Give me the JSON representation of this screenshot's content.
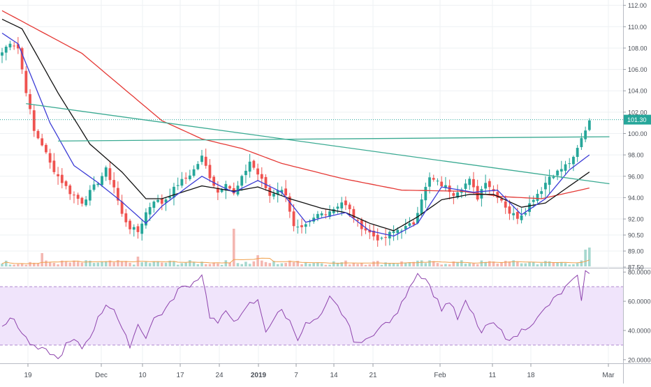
{
  "chart_data": [
    {
      "type": "candlestick",
      "panel": "price",
      "y_ticks": [
        "112.00",
        "110.00",
        "108.00",
        "106.00",
        "104.00",
        "102.00",
        "100.00",
        "98.00",
        "96.00",
        "94.00",
        "92.00",
        "90.50",
        "89.00",
        "87.50"
      ],
      "ylim": [
        87.5,
        112.5
      ],
      "last_price_label": "101.30",
      "last_price": 101.3,
      "x_ticks": [
        "19",
        "Dec",
        "10",
        "17",
        "24",
        "2019",
        "7",
        "14",
        "21",
        "Feb",
        "11",
        "18",
        "Mar"
      ],
      "close_keypoints": [
        [
          0,
          107.6
        ],
        [
          2,
          108.6
        ],
        [
          4,
          108.0
        ],
        [
          6,
          104.0
        ],
        [
          8,
          100.2
        ],
        [
          10,
          99.0
        ],
        [
          12,
          97.2
        ],
        [
          14,
          96.0
        ],
        [
          17,
          94.5
        ],
        [
          20,
          93.6
        ],
        [
          22,
          94.5
        ],
        [
          24,
          95.5
        ],
        [
          26,
          96.6
        ],
        [
          28,
          95.0
        ],
        [
          30,
          92.4
        ],
        [
          32,
          91.2
        ],
        [
          34,
          90.8
        ],
        [
          36,
          92.6
        ],
        [
          38,
          93.8
        ],
        [
          40,
          93.5
        ],
        [
          42,
          94.3
        ],
        [
          44,
          95.3
        ],
        [
          46,
          95.8
        ],
        [
          48,
          96.6
        ],
        [
          50,
          97.8
        ],
        [
          52,
          96.0
        ],
        [
          54,
          94.5
        ],
        [
          56,
          95.5
        ],
        [
          58,
          94.3
        ],
        [
          60,
          95.8
        ],
        [
          62,
          97.4
        ],
        [
          63,
          96.8
        ],
        [
          65,
          95.6
        ],
        [
          67,
          94.2
        ],
        [
          69,
          94.8
        ],
        [
          71,
          94.4
        ],
        [
          73,
          91.2
        ],
        [
          75,
          91.0
        ],
        [
          77,
          91.6
        ],
        [
          79,
          92.4
        ],
        [
          81,
          92.6
        ],
        [
          83,
          93.0
        ],
        [
          85,
          93.6
        ],
        [
          87,
          92.8
        ],
        [
          89,
          91.6
        ],
        [
          91,
          91.0
        ],
        [
          93,
          90.4
        ],
        [
          95,
          90.0
        ],
        [
          97,
          90.6
        ],
        [
          99,
          91.0
        ],
        [
          101,
          91.2
        ],
        [
          103,
          91.6
        ],
        [
          105,
          94.0
        ],
        [
          107,
          95.8
        ],
        [
          109,
          95.4
        ],
        [
          111,
          95.0
        ],
        [
          113,
          94.4
        ],
        [
          115,
          95.0
        ],
        [
          117,
          95.6
        ],
        [
          119,
          94.0
        ],
        [
          121,
          95.6
        ],
        [
          123,
          94.6
        ],
        [
          125,
          93.8
        ],
        [
          127,
          92.6
        ],
        [
          129,
          92.2
        ],
        [
          131,
          92.8
        ],
        [
          133,
          94.0
        ],
        [
          135,
          94.8
        ],
        [
          137,
          96.0
        ],
        [
          139,
          96.4
        ],
        [
          141,
          97.0
        ],
        [
          143,
          97.6
        ],
        [
          145,
          99.5
        ],
        [
          147,
          101.3
        ]
      ],
      "volume_spikes": [
        [
          0,
          4
        ],
        [
          10,
          19
        ],
        [
          34,
          14
        ],
        [
          58,
          54
        ],
        [
          64,
          16
        ],
        [
          74,
          8
        ],
        [
          102,
          6
        ],
        [
          126,
          8
        ],
        [
          146,
          24
        ],
        [
          147,
          27
        ]
      ],
      "moving_averages": [
        {
          "color": "#e53935",
          "keypoints": [
            [
              0,
              111.5
            ],
            [
              20,
              107.5
            ],
            [
              40,
              101.2
            ],
            [
              50,
              99.5
            ],
            [
              60,
              98.6
            ],
            [
              70,
              97.2
            ],
            [
              85,
              95.8
            ],
            [
              100,
              94.7
            ],
            [
              115,
              94.6
            ],
            [
              125,
              94.1
            ],
            [
              135,
              93.9
            ],
            [
              147,
              94.9
            ]
          ]
        },
        {
          "color": "#111111",
          "keypoints": [
            [
              0,
              110.7
            ],
            [
              5,
              109.8
            ],
            [
              14,
              103.8
            ],
            [
              22,
              99.0
            ],
            [
              30,
              96.4
            ],
            [
              36,
              93.9
            ],
            [
              40,
              93.9
            ],
            [
              50,
              95.1
            ],
            [
              58,
              94.6
            ],
            [
              64,
              95.0
            ],
            [
              72,
              93.9
            ],
            [
              80,
              93.0
            ],
            [
              86,
              92.6
            ],
            [
              92,
              91.6
            ],
            [
              98,
              90.9
            ],
            [
              104,
              92.2
            ],
            [
              110,
              93.8
            ],
            [
              117,
              94.3
            ],
            [
              123,
              94.3
            ],
            [
              130,
              93.1
            ],
            [
              136,
              93.5
            ],
            [
              147,
              96.4
            ]
          ]
        },
        {
          "color": "#3d3dd6",
          "keypoints": [
            [
              0,
              109.4
            ],
            [
              4,
              108.4
            ],
            [
              12,
              101.0
            ],
            [
              18,
              97.0
            ],
            [
              24,
              95.4
            ],
            [
              30,
              93.6
            ],
            [
              36,
              91.6
            ],
            [
              40,
              93.2
            ],
            [
              46,
              94.9
            ],
            [
              50,
              96.0
            ],
            [
              54,
              95.2
            ],
            [
              58,
              94.5
            ],
            [
              64,
              95.6
            ],
            [
              70,
              94.5
            ],
            [
              76,
              91.7
            ],
            [
              80,
              92.1
            ],
            [
              86,
              92.6
            ],
            [
              92,
              90.9
            ],
            [
              98,
              90.4
            ],
            [
              104,
              91.6
            ],
            [
              110,
              95.0
            ],
            [
              118,
              94.5
            ],
            [
              124,
              94.7
            ],
            [
              130,
              92.4
            ],
            [
              136,
              93.9
            ],
            [
              142,
              96.6
            ],
            [
              147,
              98.0
            ]
          ]
        }
      ],
      "trendlines": [
        {
          "color": "#3aaa92",
          "from": [
            6,
            102.8
          ],
          "to": [
            152,
            95.3
          ]
        },
        {
          "color": "#3aaa92",
          "from": [
            14,
            99.3
          ],
          "to": [
            152,
            99.7
          ]
        }
      ]
    },
    {
      "type": "line",
      "panel": "rsi",
      "y_ticks": [
        "80.0000",
        "60.0000",
        "40.0000",
        "20.0000"
      ],
      "ylim": [
        18,
        82
      ],
      "band": [
        30,
        70
      ],
      "color": "#8e44ad",
      "keypoints": [
        [
          0,
          44
        ],
        [
          3,
          48
        ],
        [
          5,
          38
        ],
        [
          8,
          28
        ],
        [
          12,
          25
        ],
        [
          14,
          20
        ],
        [
          16,
          30
        ],
        [
          18,
          33
        ],
        [
          20,
          28
        ],
        [
          22,
          36
        ],
        [
          24,
          48
        ],
        [
          26,
          58
        ],
        [
          28,
          55
        ],
        [
          30,
          40
        ],
        [
          32,
          30
        ],
        [
          34,
          44
        ],
        [
          36,
          36
        ],
        [
          38,
          48
        ],
        [
          40,
          52
        ],
        [
          42,
          58
        ],
        [
          44,
          68
        ],
        [
          46,
          70
        ],
        [
          48,
          73
        ],
        [
          50,
          79
        ],
        [
          52,
          50
        ],
        [
          54,
          45
        ],
        [
          56,
          52
        ],
        [
          58,
          48
        ],
        [
          60,
          50
        ],
        [
          62,
          58
        ],
        [
          64,
          60
        ],
        [
          66,
          40
        ],
        [
          68,
          48
        ],
        [
          70,
          54
        ],
        [
          72,
          46
        ],
        [
          74,
          35
        ],
        [
          76,
          44
        ],
        [
          78,
          46
        ],
        [
          80,
          50
        ],
        [
          82,
          62
        ],
        [
          84,
          56
        ],
        [
          86,
          48
        ],
        [
          88,
          34
        ],
        [
          90,
          30
        ],
        [
          92,
          37
        ],
        [
          94,
          40
        ],
        [
          96,
          45
        ],
        [
          98,
          48
        ],
        [
          100,
          58
        ],
        [
          102,
          71
        ],
        [
          104,
          79
        ],
        [
          106,
          76
        ],
        [
          108,
          65
        ],
        [
          110,
          55
        ],
        [
          112,
          60
        ],
        [
          114,
          48
        ],
        [
          116,
          59
        ],
        [
          118,
          50
        ],
        [
          120,
          38
        ],
        [
          122,
          45
        ],
        [
          124,
          42
        ],
        [
          126,
          36
        ],
        [
          128,
          34
        ],
        [
          130,
          40
        ],
        [
          132,
          44
        ],
        [
          134,
          48
        ],
        [
          136,
          55
        ],
        [
          138,
          61
        ],
        [
          140,
          66
        ],
        [
          142,
          72
        ],
        [
          144,
          76
        ],
        [
          145,
          62
        ],
        [
          146,
          81
        ],
        [
          147,
          78
        ]
      ]
    }
  ]
}
